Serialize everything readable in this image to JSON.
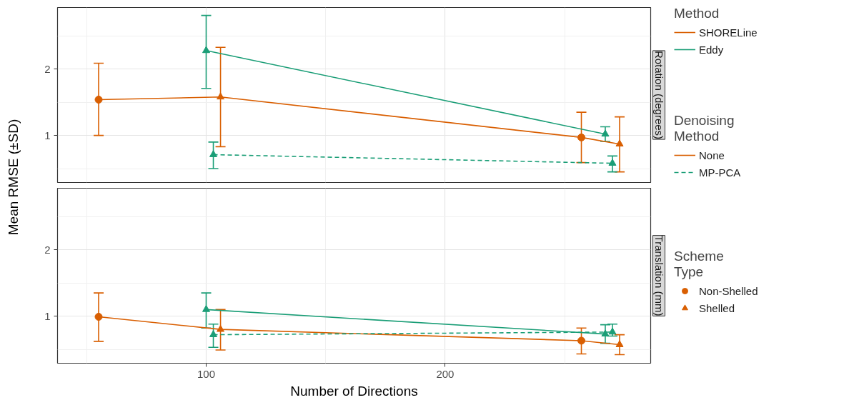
{
  "chart_data": [
    {
      "type": "line",
      "title": "Rotation (degrees)",
      "ylabel": "Mean RMSE (±SD)",
      "tick_labels": "y",
      "grid": true,
      "xlim": [
        37.8,
        286
      ],
      "ylim": [
        0.29,
        2.93
      ],
      "xticks": [
        {
          "value": 50,
          "label": null
        },
        100,
        {
          "value": 150,
          "label": null
        },
        200,
        {
          "value": 250,
          "label": null
        }
      ],
      "yticks": [
        {
          "value": 0.5,
          "label": null
        },
        1,
        {
          "value": 1.5,
          "label": null
        },
        2,
        {
          "value": 2.5,
          "label": null
        }
      ],
      "legend": "right",
      "legend_title": "Method",
      "series": [
        {
          "name": "SHORELine",
          "color": "#d95f02",
          "line_style": "solid",
          "x": [
            55,
            106,
            257,
            273
          ],
          "values": [
            1.54,
            1.58,
            0.97,
            0.87
          ]
        },
        {
          "name": "Eddy",
          "color": "#1b9e77",
          "line_style": "solid",
          "x": [
            100,
            267
          ],
          "values": [
            2.28,
            1.02
          ]
        },
        {
          "color": "#1b9e77",
          "line_style": "dashed",
          "x": [
            103,
            270
          ],
          "values": [
            0.71,
            0.58
          ]
        },
        {
          "type": "scatter",
          "color": "#d95f02",
          "marker": "circle",
          "x": [
            55,
            257
          ],
          "values": [
            1.54,
            0.97
          ],
          "errors": [
            [
              1.0,
              2.09
            ],
            [
              0.59,
              1.35
            ]
          ]
        },
        {
          "type": "scatter",
          "color": "#d95f02",
          "marker": "triangle",
          "x": [
            106,
            273
          ],
          "values": [
            1.58,
            0.87
          ],
          "errors": [
            [
              0.83,
              2.33
            ],
            [
              0.45,
              1.28
            ]
          ]
        },
        {
          "type": "scatter",
          "color": "#1b9e77",
          "marker": "triangle",
          "x": [
            100,
            267
          ],
          "values": [
            2.28,
            1.02
          ],
          "errors": [
            [
              1.71,
              2.81
            ],
            [
              0.91,
              1.13
            ]
          ]
        },
        {
          "type": "scatter",
          "color": "#1b9e77",
          "marker": "triangle",
          "x": [
            103,
            270
          ],
          "values": [
            0.71,
            0.58
          ],
          "errors": [
            [
              0.5,
              0.9
            ],
            [
              0.45,
              0.69
            ]
          ]
        }
      ]
    },
    {
      "type": "line",
      "title": "Translation (mm)",
      "xlabel": "Number of Directions",
      "grid": true,
      "xlim": [
        37.8,
        286
      ],
      "ylim": [
        0.29,
        2.93
      ],
      "xticks": [
        {
          "value": 50,
          "label": null
        },
        100,
        {
          "value": 150,
          "label": null
        },
        200,
        {
          "value": 250,
          "label": null
        }
      ],
      "yticks": [
        {
          "value": 0.5,
          "label": null
        },
        1,
        {
          "value": 1.5,
          "label": null
        },
        2,
        {
          "value": 2.5,
          "label": null
        }
      ],
      "legend": "right",
      "legend_title": "Denoising\nMethod",
      "annotations": [
        "Scheme\nType"
      ],
      "series": [
        {
          "name": "None",
          "color": "#d95f02",
          "line_style": "solid",
          "x": [
            55,
            106,
            257,
            273
          ],
          "values": [
            0.99,
            0.8,
            0.63,
            0.57
          ]
        },
        {
          "color": "#1b9e77",
          "line_style": "solid",
          "x": [
            100,
            267
          ],
          "values": [
            1.1,
            0.73
          ]
        },
        {
          "name": "MP-PCA",
          "color": "#1b9e77",
          "line_style": "dashed",
          "x": [
            103,
            270
          ],
          "values": [
            0.72,
            0.76
          ]
        },
        {
          "type": "scatter",
          "name": "Non-Shelled",
          "color": "#d95f02",
          "marker": "circle",
          "x": [
            55,
            257
          ],
          "values": [
            0.99,
            0.63
          ],
          "errors": [
            [
              0.62,
              1.35
            ],
            [
              0.43,
              0.82
            ]
          ]
        },
        {
          "type": "scatter",
          "name": "Shelled",
          "color": "#d95f02",
          "marker": "triangle",
          "x": [
            106,
            273
          ],
          "values": [
            0.8,
            0.57
          ],
          "errors": [
            [
              0.49,
              1.1
            ],
            [
              0.42,
              0.72
            ]
          ]
        },
        {
          "type": "scatter",
          "color": "#1b9e77",
          "marker": "triangle",
          "x": [
            100,
            267
          ],
          "values": [
            1.1,
            0.73
          ],
          "errors": [
            [
              0.82,
              1.35
            ],
            [
              0.59,
              0.87
            ]
          ]
        },
        {
          "type": "scatter",
          "color": "#1b9e77",
          "marker": "triangle",
          "x": [
            103,
            270
          ],
          "values": [
            0.72,
            0.76
          ],
          "errors": [
            [
              0.53,
              0.88
            ],
            [
              0.7,
              0.88
            ]
          ]
        }
      ]
    }
  ]
}
